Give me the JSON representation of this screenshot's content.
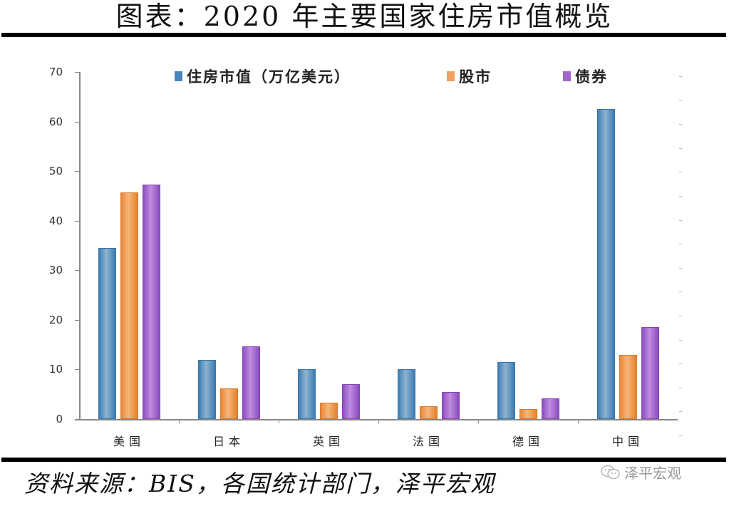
{
  "title": "图表：2020 年主要国家住房市值概览",
  "footer": {
    "source": "资料来源：BIS，各国统计部门，泽平宏观",
    "watermark": "泽平宏观",
    "watermark_icon": "wechat-icon"
  },
  "legend": [
    {
      "label": "住房市值（万亿美元）",
      "color": "#4a86bd"
    },
    {
      "label": "股市",
      "color": "#f0a060"
    },
    {
      "label": "债券",
      "color": "#a066cc"
    }
  ],
  "yaxis": {
    "ticks": [
      "0",
      "10",
      "20",
      "30",
      "40",
      "50",
      "60",
      "70"
    ]
  },
  "xaxis": {
    "labels": [
      "美国",
      "日本",
      "英国",
      "法国",
      "德国",
      "中国"
    ]
  },
  "chart_data": {
    "type": "bar",
    "title": "图表：2020 年主要国家住房市值概览",
    "xlabel": "",
    "ylabel": "",
    "ylim": [
      0,
      70
    ],
    "yticks": [
      0,
      10,
      20,
      30,
      40,
      50,
      60,
      70
    ],
    "grid": false,
    "legend_position": "top",
    "categories": [
      "美国",
      "日本",
      "英国",
      "法国",
      "德国",
      "中国"
    ],
    "series": [
      {
        "name": "住房市值（万亿美元）",
        "color": "#4a86bd",
        "values": [
          34.5,
          11.9,
          10.0,
          10.0,
          11.5,
          62.5
        ]
      },
      {
        "name": "股市",
        "color": "#f0a060",
        "values": [
          45.7,
          6.2,
          3.3,
          2.6,
          2.0,
          12.9
        ]
      },
      {
        "name": "债券",
        "color": "#a066cc",
        "values": [
          47.3,
          14.7,
          7.0,
          5.5,
          4.2,
          18.5
        ]
      }
    ],
    "source": "资料来源：BIS，各国统计部门，泽平宏观"
  }
}
